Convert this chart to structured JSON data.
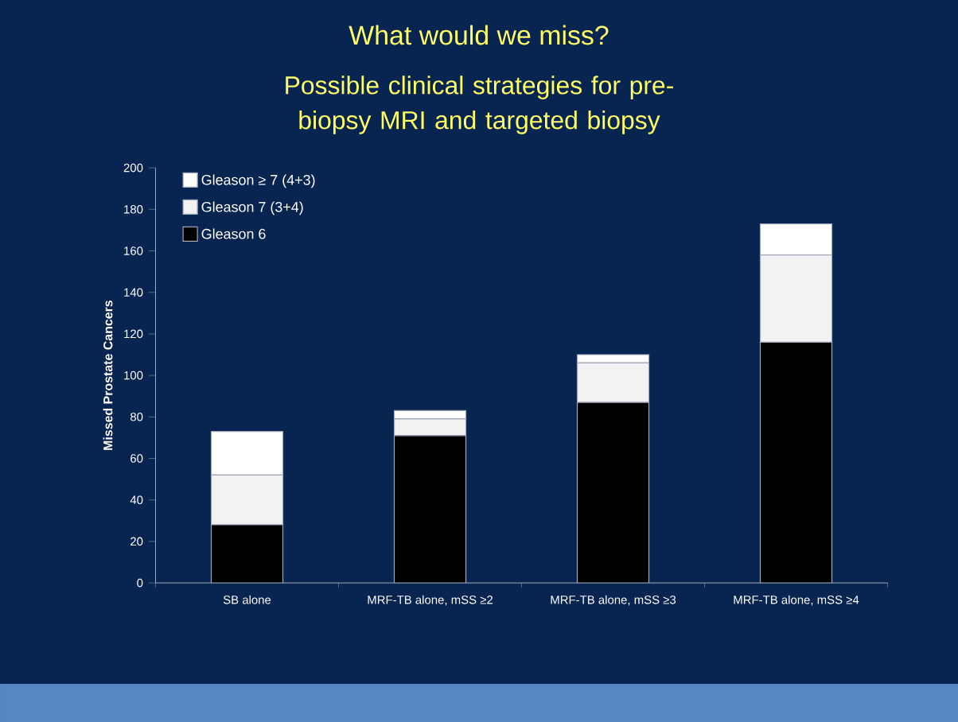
{
  "chart_data": {
    "type": "bar",
    "stacked": true,
    "title": "What would we miss?",
    "subtitle": "Possible clinical strategies for pre-biopsy MRI and targeted biopsy",
    "ylabel": "Missed Prostate Cancers",
    "categories": [
      "SB alone",
      "MRF-TB alone, mSS ≥2",
      "MRF-TB alone, mSS ≥3",
      "MRF-TB alone, mSS ≥4"
    ],
    "series": [
      {
        "name": "Gleason 6",
        "color": "#000000",
        "values": [
          28,
          71,
          87,
          116
        ]
      },
      {
        "name": "Gleason 7 (3+4)",
        "color": "#f2f2f2",
        "values": [
          24,
          8,
          19,
          42
        ]
      },
      {
        "name": "Gleason ≥ 7 (4+3)",
        "color": "#ffffff",
        "values": [
          21,
          4,
          4,
          15
        ]
      }
    ],
    "ylim": [
      0,
      200
    ],
    "yticks": [
      0,
      20,
      40,
      60,
      80,
      100,
      120,
      140,
      160,
      180,
      200
    ],
    "legend": "top left",
    "grid": false
  }
}
